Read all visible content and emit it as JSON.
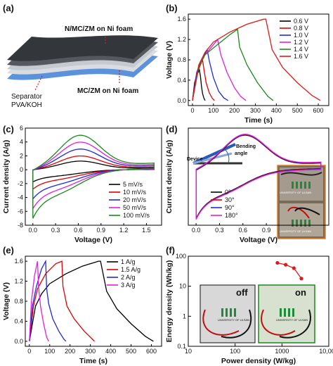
{
  "panel_labels": {
    "a": "(a)",
    "b": "(b)",
    "c": "(c)",
    "d": "(d)",
    "e": "(e)",
    "f": "(f)"
  },
  "panel_a": {
    "label_top": "N/MC/ZM on Ni foam",
    "label_separator_1": "Separator",
    "label_separator_2": "PVA/KOH",
    "label_bottom": "MC/ZM on Ni foam"
  },
  "panel_d": {
    "inset_bending_1": "Bending",
    "inset_bending_2": "angle",
    "inset_device": "Device",
    "inset_brand_1": "UNIVERSITY OF ULSAN",
    "inset_brand_2": "UNIVERSITY OF ULSAN"
  },
  "panel_f": {
    "inset_off": "off",
    "inset_on": "on",
    "inset_brand_1": "UNIVERSITY OF ULSAN",
    "inset_brand_2": "UNIVERSITY OF ULSAN"
  },
  "chart_data": [
    {
      "id": "b",
      "type": "line",
      "xlabel": "Time (s)",
      "ylabel": "Voltage (V)",
      "xlim": [
        -20,
        650
      ],
      "ylim": [
        -0.1,
        1.7
      ],
      "xticks": [
        "0",
        "100",
        "200",
        "300",
        "400",
        "500",
        "600"
      ],
      "yticks": [
        "0.0",
        "0.4",
        "0.8",
        "1.2",
        "1.6"
      ],
      "series": [
        {
          "name": "0.6 V",
          "color": "#000000",
          "x": [
            0,
            10,
            20,
            28,
            33,
            38,
            43,
            48,
            54,
            60
          ],
          "y": [
            0,
            0.35,
            0.48,
            0.56,
            0.6,
            0.48,
            0.28,
            0.14,
            0.05,
            0
          ]
        },
        {
          "name": "0.8 V",
          "color": "#e00000",
          "x": [
            0,
            15,
            28,
            40,
            48,
            55,
            65,
            80,
            95,
            105
          ],
          "y": [
            0,
            0.42,
            0.6,
            0.72,
            0.8,
            0.6,
            0.35,
            0.15,
            0.04,
            0
          ]
        },
        {
          "name": "1.0 V",
          "color": "#1d2bd8",
          "x": [
            0,
            20,
            40,
            60,
            70,
            80,
            100,
            125,
            150,
            170
          ],
          "y": [
            0,
            0.55,
            0.78,
            0.92,
            1.0,
            0.78,
            0.45,
            0.18,
            0.05,
            0
          ]
        },
        {
          "name": "1.2 V",
          "color": "#e020e0",
          "x": [
            0,
            25,
            50,
            80,
            120,
            135,
            165,
            200,
            230,
            255
          ],
          "y": [
            0,
            0.6,
            0.85,
            1.0,
            1.2,
            0.9,
            0.55,
            0.25,
            0.08,
            0
          ]
        },
        {
          "name": "1.4 V",
          "color": "#1a8a1a",
          "x": [
            0,
            30,
            60,
            120,
            180,
            215,
            225,
            260,
            310,
            360,
            385
          ],
          "y": [
            0,
            0.65,
            0.9,
            1.1,
            1.3,
            1.4,
            1.05,
            0.7,
            0.35,
            0.08,
            0
          ]
        },
        {
          "name": "1.6 V",
          "color": "#e01a1a",
          "x": [
            0,
            30,
            60,
            100,
            180,
            260,
            340,
            350,
            380,
            430,
            500,
            570,
            610
          ],
          "y": [
            0,
            0.7,
            0.95,
            1.15,
            1.35,
            1.5,
            1.6,
            1.6,
            1.0,
            0.65,
            0.35,
            0.1,
            0
          ]
        }
      ]
    },
    {
      "id": "c",
      "type": "line",
      "xlabel": "Voltage (V)",
      "ylabel": "Current density (A/g)",
      "xlim": [
        -0.1,
        1.7
      ],
      "ylim": [
        -8,
        6
      ],
      "xticks": [
        "0.0",
        "0.3",
        "0.6",
        "0.9",
        "1.2",
        "1.5"
      ],
      "yticks": [
        "-8",
        "-6",
        "-4",
        "-2",
        "0",
        "2",
        "4",
        "6"
      ],
      "series": [
        {
          "name": "5 mV/s",
          "color": "#000000",
          "scale": 0.25
        },
        {
          "name": "10 mV/s",
          "color": "#e00000",
          "scale": 0.4
        },
        {
          "name": "20 mV/s",
          "color": "#1d2bd8",
          "scale": 0.6
        },
        {
          "name": "50 mV/s",
          "color": "#e020e0",
          "scale": 0.8
        },
        {
          "name": "100 mV/s",
          "color": "#1a8a1a",
          "scale": 1.0
        }
      ]
    },
    {
      "id": "d",
      "type": "line",
      "xlabel": "Voltage (V)",
      "ylabel": "Current density (A/g)",
      "xlim": [
        -0.1,
        1.7
      ],
      "ylim": [
        -8,
        6
      ],
      "xticks": [
        "0.0",
        "0.3",
        "0.6",
        "0.9"
      ],
      "series": [
        {
          "name": "0°",
          "color": "#000000"
        },
        {
          "name": "30°",
          "color": "#e00000"
        },
        {
          "name": "90°",
          "color": "#1d2bd8"
        },
        {
          "name": "180°",
          "color": "#e020e0"
        }
      ]
    },
    {
      "id": "e",
      "type": "line",
      "xlabel": "Time (s)",
      "ylabel": "Voltage (V)",
      "xlim": [
        -20,
        650
      ],
      "ylim": [
        -0.1,
        1.7
      ],
      "xticks": [
        "0",
        "100",
        "200",
        "300",
        "400",
        "500",
        "600"
      ],
      "yticks": [
        "0.0",
        "0.4",
        "0.8",
        "1.2",
        "1.6"
      ],
      "series": [
        {
          "name": "1 A/g",
          "color": "#000000",
          "x": [
            0,
            30,
            60,
            100,
            180,
            260,
            340,
            350,
            380,
            430,
            500,
            570,
            610
          ],
          "y": [
            0,
            0.7,
            0.95,
            1.15,
            1.35,
            1.5,
            1.6,
            1.6,
            1.0,
            0.65,
            0.35,
            0.1,
            0
          ]
        },
        {
          "name": "1.5 A/g",
          "color": "#e00000",
          "x": [
            0,
            20,
            40,
            80,
            130,
            160,
            165,
            185,
            220,
            270,
            310,
            320
          ],
          "y": [
            0,
            0.7,
            1.05,
            1.35,
            1.55,
            1.6,
            1.1,
            0.7,
            0.45,
            0.2,
            0.04,
            0
          ]
        },
        {
          "name": "2 A/g",
          "color": "#1d2bd8",
          "x": [
            0,
            15,
            35,
            60,
            80,
            85,
            95,
            115,
            145,
            170,
            180
          ],
          "y": [
            0,
            0.7,
            1.1,
            1.45,
            1.6,
            1.05,
            0.75,
            0.45,
            0.2,
            0.04,
            0
          ]
        },
        {
          "name": "3 A/g",
          "color": "#e020e0",
          "x": [
            0,
            10,
            25,
            40,
            45,
            55,
            70,
            85,
            95
          ],
          "y": [
            0,
            0.8,
            1.3,
            1.6,
            1.1,
            0.7,
            0.35,
            0.08,
            0
          ]
        }
      ]
    },
    {
      "id": "f",
      "type": "scatter",
      "xlabel": "Power density (W/kg)",
      "ylabel": "Energy density (Wh/kg)",
      "xlim": [
        10,
        10000
      ],
      "ylim": [
        0.1,
        100
      ],
      "xscale": "log",
      "yscale": "log",
      "xticks": [
        "10",
        "100",
        "1000",
        "10,000"
      ],
      "yticks": [
        "0.1",
        "1",
        "10",
        "100"
      ],
      "series": [
        {
          "name": "",
          "color": "#e01a1a",
          "x": [
            800,
            1200,
            1800,
            2600
          ],
          "y": [
            60,
            52,
            40,
            18
          ]
        }
      ]
    }
  ]
}
